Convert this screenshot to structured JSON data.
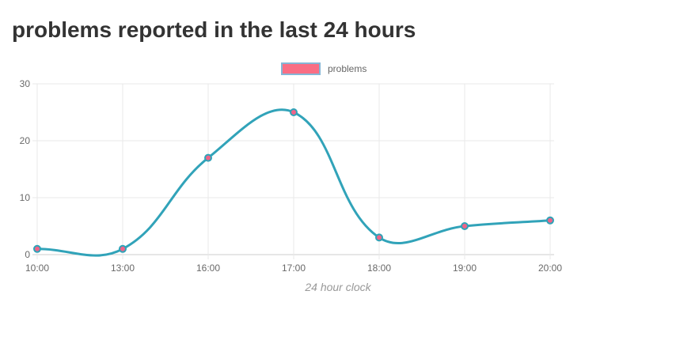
{
  "chart_data": {
    "type": "line",
    "title": "problems reported in the last 24 hours",
    "xlabel": "24 hour clock",
    "ylabel": "",
    "categories": [
      "10:00",
      "13:00",
      "16:00",
      "17:00",
      "18:00",
      "19:00",
      "20:00"
    ],
    "series": [
      {
        "name": "problems",
        "values": [
          1,
          1,
          17,
          25,
          3,
          5,
          6
        ]
      }
    ],
    "ylim": [
      0,
      30
    ],
    "y_ticks": [
      0,
      10,
      20,
      30
    ],
    "grid": true,
    "legend_position": "top",
    "smoothing": 0.4,
    "colors": {
      "line": "#31a3b9",
      "point_fill": "#ef6488",
      "point_border": "#2fa3b8",
      "legend_swatch_fill": "#f96e84",
      "legend_swatch_border": "#85b6d6",
      "grid_line": "#e9e9e9",
      "axis_line": "#cccccc",
      "tick_label": "#696969",
      "axis_title_text": "#999999",
      "title_text": "#333333"
    }
  }
}
